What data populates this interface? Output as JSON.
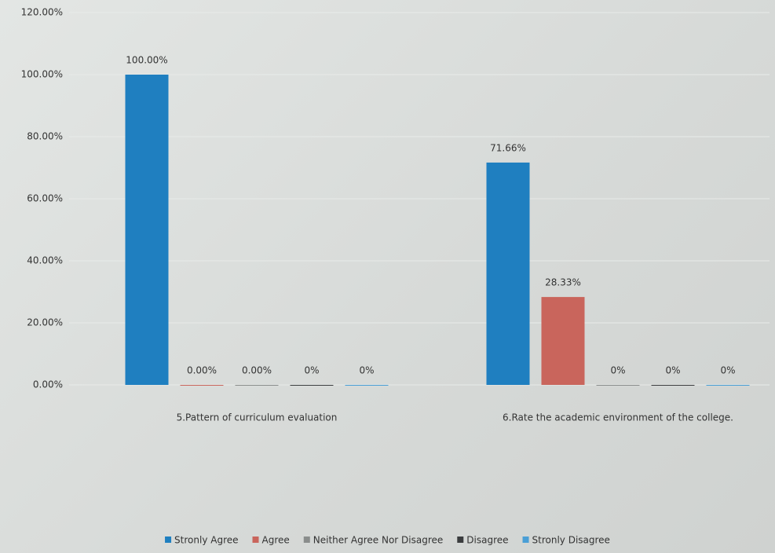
{
  "chart_data": {
    "type": "bar",
    "categories": [
      "5.Pattern of curriculum evaluation",
      "6.Rate the academic environment of the college."
    ],
    "series": [
      {
        "name": "Stronly Agree",
        "color": "#1f7fc0",
        "values": [
          100,
          71.66
        ],
        "value_labels": [
          "100.00%",
          "71.66%"
        ]
      },
      {
        "name": "Agree",
        "color": "#c9655c",
        "values": [
          0,
          28.33
        ],
        "value_labels": [
          "0.00%",
          "28.33%"
        ]
      },
      {
        "name": "Neither Agree Nor Disagree",
        "color": "#8a8d8c",
        "values": [
          0,
          0
        ],
        "value_labels": [
          "0.00%",
          "0%"
        ]
      },
      {
        "name": "Disagree",
        "color": "#3a3c3e",
        "values": [
          0,
          0
        ],
        "value_labels": [
          "0%",
          "0%"
        ]
      },
      {
        "name": "Stronly Disagree",
        "color": "#4a9fd6",
        "values": [
          0,
          0
        ],
        "value_labels": [
          "0%",
          "0%"
        ]
      }
    ],
    "ylim": [
      0,
      120
    ],
    "yticks": [
      {
        "value": 0,
        "label": "0.00%"
      },
      {
        "value": 20,
        "label": "20.00%"
      },
      {
        "value": 40,
        "label": "40.00%"
      },
      {
        "value": 60,
        "label": "60.00%"
      },
      {
        "value": 80,
        "label": "80.00%"
      },
      {
        "value": 100,
        "label": "100.00%"
      },
      {
        "value": 120,
        "label": "120.00%"
      }
    ],
    "grid": true,
    "legend": "bottom"
  }
}
